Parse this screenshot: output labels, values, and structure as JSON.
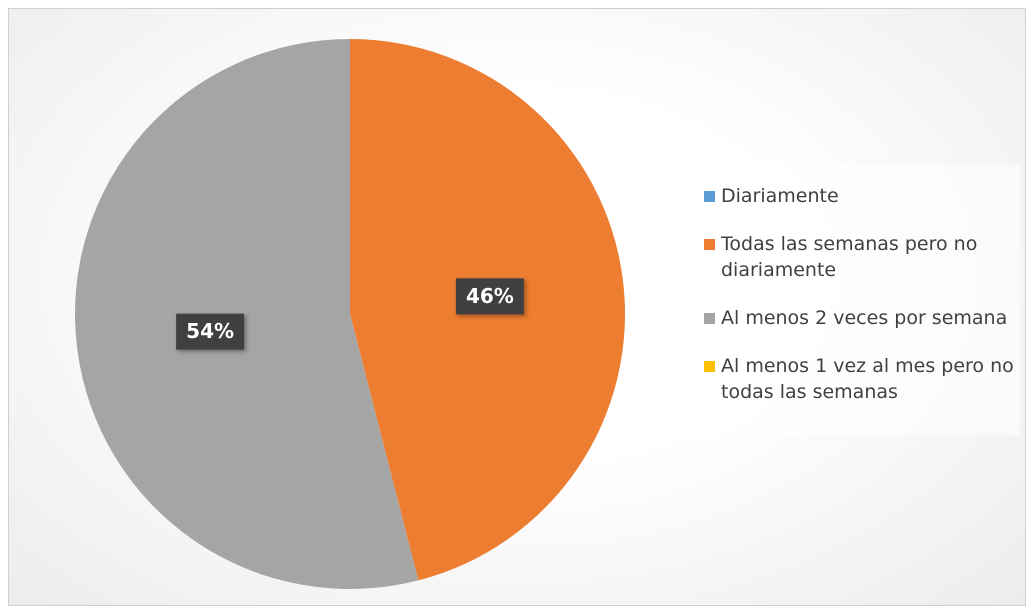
{
  "chart_data": {
    "type": "pie",
    "categories": [
      "Diariamente",
      "Todas las semanas pero no diariamente",
      "Al menos 2 veces por semana",
      "Al menos 1 vez al mes pero no todas las semanas"
    ],
    "values": [
      0,
      46,
      54,
      0
    ],
    "value_labels": [
      null,
      "46%",
      "54%",
      null
    ],
    "colors": [
      "#5b9bd5",
      "#ed7d31",
      "#a5a5a5",
      "#ffc000"
    ],
    "legend": "right"
  }
}
